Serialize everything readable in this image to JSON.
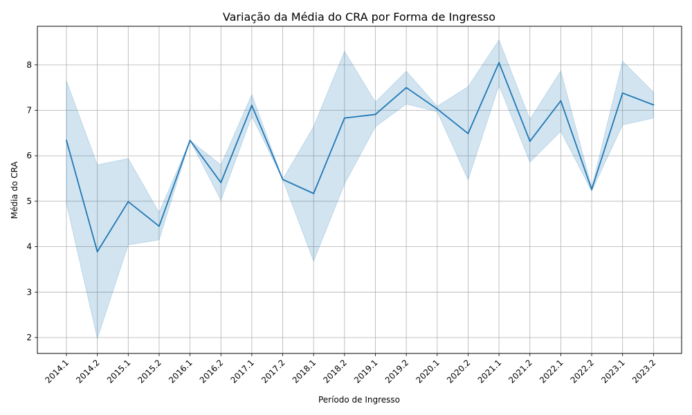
{
  "chart_data": {
    "type": "line",
    "title": "Variação da Média do CRA por Forma de Ingresso",
    "xlabel": "Período de Ingresso",
    "ylabel": "Média do CRA",
    "ylim": [
      1.65,
      8.85
    ],
    "yticks": [
      2,
      3,
      4,
      5,
      6,
      7,
      8
    ],
    "grid": true,
    "categories": [
      "2014.1",
      "2014.2",
      "2015.1",
      "2015.2",
      "2016.1",
      "2016.2",
      "2017.1",
      "2017.2",
      "2018.1",
      "2018.2",
      "2019.1",
      "2019.2",
      "2020.1",
      "2020.2",
      "2021.1",
      "2021.2",
      "2022.1",
      "2022.2",
      "2023.1",
      "2023.2"
    ],
    "series": [
      {
        "values": [
          6.34,
          3.89,
          4.99,
          4.45,
          6.34,
          5.41,
          7.11,
          5.48,
          5.17,
          6.83,
          6.91,
          7.5,
          7.03,
          6.49,
          8.05,
          6.32,
          7.21,
          5.26,
          7.38,
          7.12
        ],
        "ci_upper": [
          7.65,
          5.8,
          5.94,
          4.75,
          6.34,
          5.8,
          7.35,
          5.48,
          6.64,
          8.3,
          7.18,
          7.86,
          7.09,
          7.52,
          8.55,
          6.8,
          7.87,
          5.3,
          8.08,
          7.4
        ],
        "ci_lower": [
          4.95,
          1.98,
          4.04,
          4.15,
          6.34,
          5.02,
          6.87,
          5.48,
          3.68,
          5.38,
          6.64,
          7.14,
          6.97,
          5.47,
          7.55,
          5.86,
          6.54,
          5.22,
          6.68,
          6.83
        ]
      }
    ],
    "colors": {
      "line": "#1f77b4",
      "band": "#1f77b4",
      "grid": "#b0b0b0"
    }
  }
}
